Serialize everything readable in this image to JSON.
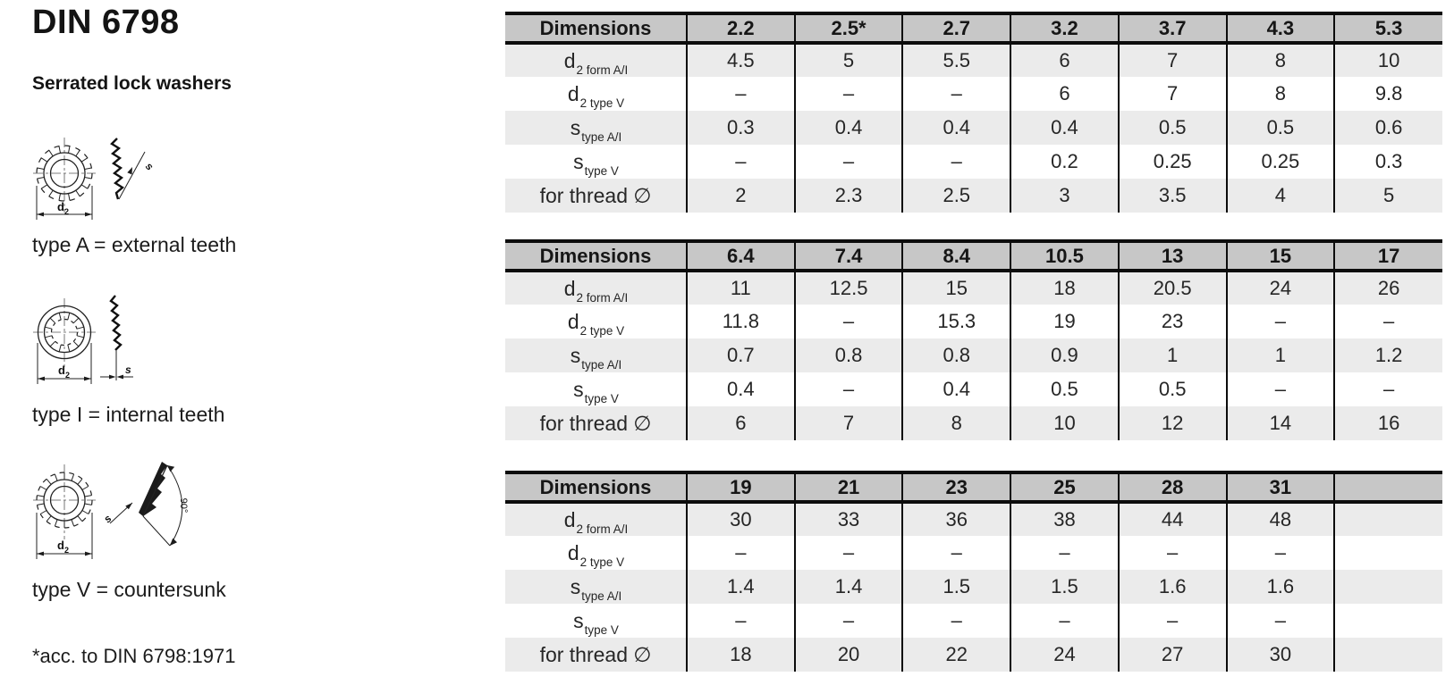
{
  "page": {
    "title": "DIN 6798",
    "subtitle": "Serrated lock washers",
    "footnote": "*acc. to DIN 6798:1971"
  },
  "diagram_labels": {
    "d_main": "d",
    "d_sub": "2",
    "s": "s",
    "angle": "90°"
  },
  "diagrams": [
    {
      "id": "type-a",
      "caption": "type A = external teeth"
    },
    {
      "id": "type-i",
      "caption": "type I = internal teeth"
    },
    {
      "id": "type-v",
      "caption": "type V = countersunk"
    }
  ],
  "colors": {
    "header_bg": "#c7c7c7",
    "stripe_bg": "#ebebeb",
    "border_color": "#0c0c0c"
  },
  "tables": [
    {
      "header": [
        "Dimensions",
        "2.2",
        "2.5*",
        "2.7",
        "3.2",
        "3.7",
        "4.3",
        "5.3"
      ],
      "rows": [
        {
          "label": "d",
          "sub": "2 form A/I",
          "values": [
            "4.5",
            "5",
            "5.5",
            "6",
            "7",
            "8",
            "10"
          ]
        },
        {
          "label": "d",
          "sub": "2 type V",
          "values": [
            "–",
            "–",
            "–",
            "6",
            "7",
            "8",
            "9.8"
          ]
        },
        {
          "label": "s",
          "sub": "type A/I",
          "values": [
            "0.3",
            "0.4",
            "0.4",
            "0.4",
            "0.5",
            "0.5",
            "0.6"
          ]
        },
        {
          "label": "s",
          "sub": "type V",
          "values": [
            "–",
            "–",
            "–",
            "0.2",
            "0.25",
            "0.25",
            "0.3"
          ]
        },
        {
          "label": "for thread ∅",
          "sub": "",
          "values": [
            "2",
            "2.3",
            "2.5",
            "3",
            "3.5",
            "4",
            "5"
          ]
        }
      ]
    },
    {
      "header": [
        "Dimensions",
        "6.4",
        "7.4",
        "8.4",
        "10.5",
        "13",
        "15",
        "17"
      ],
      "rows": [
        {
          "label": "d",
          "sub": "2 form A/I",
          "values": [
            "11",
            "12.5",
            "15",
            "18",
            "20.5",
            "24",
            "26"
          ]
        },
        {
          "label": "d",
          "sub": "2 type V",
          "values": [
            "11.8",
            "–",
            "15.3",
            "19",
            "23",
            "–",
            "–"
          ]
        },
        {
          "label": "s",
          "sub": "type A/I",
          "values": [
            "0.7",
            "0.8",
            "0.8",
            "0.9",
            "1",
            "1",
            "1.2"
          ]
        },
        {
          "label": "s",
          "sub": "type V",
          "values": [
            "0.4",
            "–",
            "0.4",
            "0.5",
            "0.5",
            "–",
            "–"
          ]
        },
        {
          "label": "for thread ∅",
          "sub": "",
          "values": [
            "6",
            "7",
            "8",
            "10",
            "12",
            "14",
            "16"
          ]
        }
      ]
    },
    {
      "header": [
        "Dimensions",
        "19",
        "21",
        "23",
        "25",
        "28",
        "31",
        ""
      ],
      "rows": [
        {
          "label": "d",
          "sub": "2 form A/I",
          "values": [
            "30",
            "33",
            "36",
            "38",
            "44",
            "48",
            ""
          ]
        },
        {
          "label": "d",
          "sub": "2 type V",
          "values": [
            "–",
            "–",
            "–",
            "–",
            "–",
            "–",
            ""
          ]
        },
        {
          "label": "s",
          "sub": "type A/I",
          "values": [
            "1.4",
            "1.4",
            "1.5",
            "1.5",
            "1.6",
            "1.6",
            ""
          ]
        },
        {
          "label": "s",
          "sub": "type V",
          "values": [
            "–",
            "–",
            "–",
            "–",
            "–",
            "–",
            ""
          ]
        },
        {
          "label": "for thread ∅",
          "sub": "",
          "values": [
            "18",
            "20",
            "22",
            "24",
            "27",
            "30",
            ""
          ]
        }
      ]
    }
  ]
}
